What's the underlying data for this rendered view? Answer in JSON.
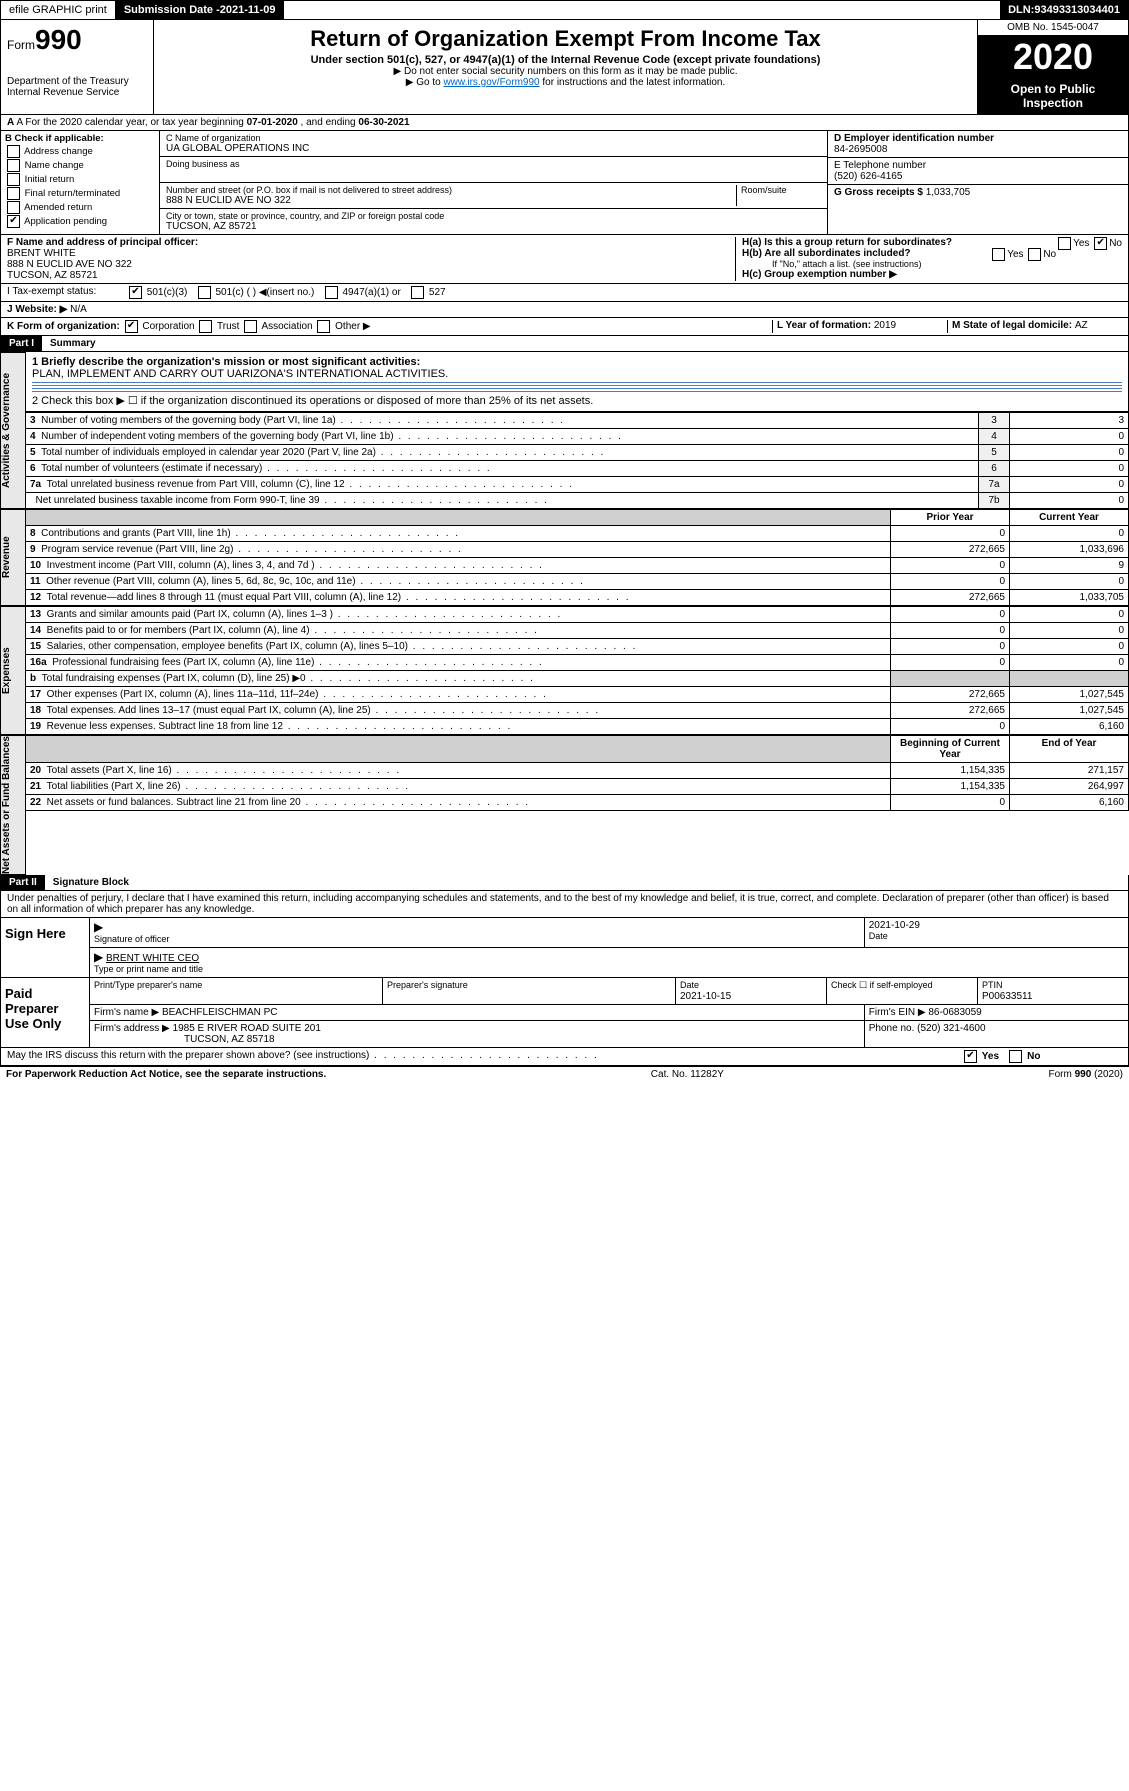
{
  "topbar": {
    "efile": "efile GRAPHIC print",
    "subdate_label": "Submission Date - ",
    "subdate": "2021-11-09",
    "dln_label": "DLN: ",
    "dln": "93493313034401"
  },
  "header": {
    "form_prefix": "Form",
    "form_num": "990",
    "dept": "Department of the Treasury",
    "irs": "Internal Revenue Service",
    "title": "Return of Organization Exempt From Income Tax",
    "sub": "Under section 501(c), 527, or 4947(a)(1) of the Internal Revenue Code (except private foundations)",
    "note1": "▶ Do not enter social security numbers on this form as it may be made public.",
    "note2_pre": "▶ Go to ",
    "note2_link": "www.irs.gov/Form990",
    "note2_post": " for instructions and the latest information.",
    "omb": "OMB No. 1545-0047",
    "year": "2020",
    "open": "Open to Public Inspection"
  },
  "rowA": {
    "text_pre": "A For the 2020 calendar year, or tax year beginning ",
    "begin": "07-01-2020",
    "mid": " , and ending ",
    "end": "06-30-2021"
  },
  "colB": {
    "label": "B Check if applicable:",
    "items": [
      "Address change",
      "Name change",
      "Initial return",
      "Final return/terminated",
      "Amended return",
      "Application pending"
    ]
  },
  "colC": {
    "name_label": "C Name of organization",
    "name": "UA GLOBAL OPERATIONS INC",
    "dba_label": "Doing business as",
    "addr_label": "Number and street (or P.O. box if mail is not delivered to street address)",
    "room_label": "Room/suite",
    "addr": "888 N EUCLID AVE NO 322",
    "city_label": "City or town, state or province, country, and ZIP or foreign postal code",
    "city": "TUCSON, AZ  85721"
  },
  "colD": {
    "ein_label": "D Employer identification number",
    "ein": "84-2695008",
    "phone_label": "E Telephone number",
    "phone": "(520) 626-4165",
    "gross_label": "G Gross receipts $ ",
    "gross": "1,033,705"
  },
  "rowF": {
    "label": "F Name and address of principal officer:",
    "name": "BRENT WHITE",
    "addr": "888 N EUCLID AVE NO 322",
    "city": "TUCSON, AZ  85721"
  },
  "rowH": {
    "ha": "H(a)  Is this a group return for subordinates?",
    "hb": "H(b)  Are all subordinates included?",
    "hb_note": "If \"No,\" attach a list. (see instructions)",
    "hc": "H(c)  Group exemption number ▶"
  },
  "rowI": {
    "label": "I  Tax-exempt status:",
    "o501c3": "501(c)(3)",
    "o501c": "501(c) ( ) ◀(insert no.)",
    "o4947": "4947(a)(1) or",
    "o527": "527"
  },
  "rowJ": {
    "label": "J  Website: ▶",
    "value": "N/A"
  },
  "rowK": {
    "label": "K Form of organization:",
    "corp": "Corporation",
    "trust": "Trust",
    "assoc": "Association",
    "other": "Other ▶",
    "l_label": "L Year of formation: ",
    "l_val": "2019",
    "m_label": "M State of legal domicile: ",
    "m_val": "AZ"
  },
  "part1": {
    "header": "Part I",
    "title": "Summary",
    "l1_label": "1  Briefly describe the organization's mission or most significant activities:",
    "l1_text": "PLAN, IMPLEMENT AND CARRY OUT UARIZONA'S INTERNATIONAL ACTIVITIES.",
    "l2": "2  Check this box ▶ ☐  if the organization discontinued its operations or disposed of more than 25% of its net assets.",
    "lines_gov": [
      {
        "n": "3",
        "t": "Number of voting members of the governing body (Part VI, line 1a)",
        "box": "3",
        "v": "3"
      },
      {
        "n": "4",
        "t": "Number of independent voting members of the governing body (Part VI, line 1b)",
        "box": "4",
        "v": "0"
      },
      {
        "n": "5",
        "t": "Total number of individuals employed in calendar year 2020 (Part V, line 2a)",
        "box": "5",
        "v": "0"
      },
      {
        "n": "6",
        "t": "Total number of volunteers (estimate if necessary)",
        "box": "6",
        "v": "0"
      },
      {
        "n": "7a",
        "t": "Total unrelated business revenue from Part VIII, column (C), line 12",
        "box": "7a",
        "v": "0"
      },
      {
        "n": "",
        "t": "Net unrelated business taxable income from Form 990-T, line 39",
        "box": "7b",
        "v": "0"
      }
    ],
    "col_prior": "Prior Year",
    "col_current": "Current Year",
    "revenue": [
      {
        "n": "8",
        "t": "Contributions and grants (Part VIII, line 1h)",
        "p": "0",
        "c": "0"
      },
      {
        "n": "9",
        "t": "Program service revenue (Part VIII, line 2g)",
        "p": "272,665",
        "c": "1,033,696"
      },
      {
        "n": "10",
        "t": "Investment income (Part VIII, column (A), lines 3, 4, and 7d )",
        "p": "0",
        "c": "9"
      },
      {
        "n": "11",
        "t": "Other revenue (Part VIII, column (A), lines 5, 6d, 8c, 9c, 10c, and 11e)",
        "p": "0",
        "c": "0"
      },
      {
        "n": "12",
        "t": "Total revenue—add lines 8 through 11 (must equal Part VIII, column (A), line 12)",
        "p": "272,665",
        "c": "1,033,705"
      }
    ],
    "expenses": [
      {
        "n": "13",
        "t": "Grants and similar amounts paid (Part IX, column (A), lines 1–3 )",
        "p": "0",
        "c": "0"
      },
      {
        "n": "14",
        "t": "Benefits paid to or for members (Part IX, column (A), line 4)",
        "p": "0",
        "c": "0"
      },
      {
        "n": "15",
        "t": "Salaries, other compensation, employee benefits (Part IX, column (A), lines 5–10)",
        "p": "0",
        "c": "0"
      },
      {
        "n": "16a",
        "t": "Professional fundraising fees (Part IX, column (A), line 11e)",
        "p": "0",
        "c": "0"
      },
      {
        "n": "b",
        "t": "Total fundraising expenses (Part IX, column (D), line 25) ▶0",
        "p": "shaded",
        "c": "shaded"
      },
      {
        "n": "17",
        "t": "Other expenses (Part IX, column (A), lines 11a–11d, 11f–24e)",
        "p": "272,665",
        "c": "1,027,545"
      },
      {
        "n": "18",
        "t": "Total expenses. Add lines 13–17 (must equal Part IX, column (A), line 25)",
        "p": "272,665",
        "c": "1,027,545"
      },
      {
        "n": "19",
        "t": "Revenue less expenses. Subtract line 18 from line 12",
        "p": "0",
        "c": "6,160"
      }
    ],
    "col_begin": "Beginning of Current Year",
    "col_end": "End of Year",
    "netassets": [
      {
        "n": "20",
        "t": "Total assets (Part X, line 16)",
        "p": "1,154,335",
        "c": "271,157"
      },
      {
        "n": "21",
        "t": "Total liabilities (Part X, line 26)",
        "p": "1,154,335",
        "c": "264,997"
      },
      {
        "n": "22",
        "t": "Net assets or fund balances. Subtract line 21 from line 20",
        "p": "0",
        "c": "6,160"
      }
    ],
    "side_gov": "Activities & Governance",
    "side_rev": "Revenue",
    "side_exp": "Expenses",
    "side_net": "Net Assets or Fund Balances"
  },
  "part2": {
    "header": "Part II",
    "title": "Signature Block",
    "declaration": "Under penalties of perjury, I declare that I have examined this return, including accompanying schedules and statements, and to the best of my knowledge and belief, it is true, correct, and complete. Declaration of preparer (other than officer) is based on all information of which preparer has any knowledge."
  },
  "sign": {
    "label": "Sign Here",
    "sig_label": "Signature of officer",
    "date": "2021-10-29",
    "date_label": "Date",
    "name": "BRENT WHITE CEO",
    "name_label": "Type or print name and title"
  },
  "paid": {
    "label": "Paid Preparer Use Only",
    "col1": "Print/Type preparer's name",
    "col2": "Preparer's signature",
    "col3_label": "Date",
    "col3": "2021-10-15",
    "col4_label": "Check ☐ if self-employed",
    "col5_label": "PTIN",
    "col5": "P00633511",
    "firm_label": "Firm's name    ▶ ",
    "firm": "BEACHFLEISCHMAN PC",
    "ein_label": "Firm's EIN ▶ ",
    "ein": "86-0683059",
    "addr_label": "Firm's address ▶ ",
    "addr1": "1985 E RIVER ROAD SUITE 201",
    "addr2": "TUCSON, AZ  85718",
    "phone_label": "Phone no. ",
    "phone": "(520) 321-4600"
  },
  "discuss": {
    "text": "May the IRS discuss this return with the preparer shown above? (see instructions)",
    "yes": "Yes",
    "no": "No"
  },
  "footer": {
    "left": "For Paperwork Reduction Act Notice, see the separate instructions.",
    "mid": "Cat. No. 11282Y",
    "right": "Form 990 (2020)"
  }
}
